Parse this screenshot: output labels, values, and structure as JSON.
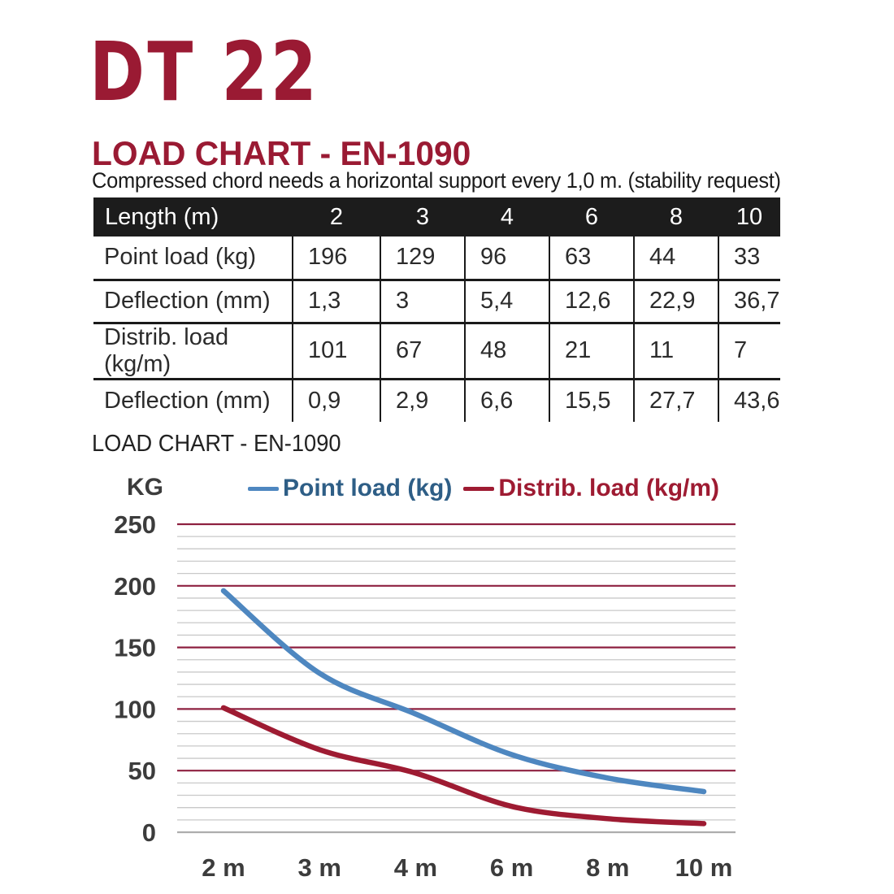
{
  "page": {
    "title": "DT 22",
    "accent_color": "#9A1A33"
  },
  "section": {
    "heading": "LOAD CHART - EN-1090",
    "subtitle": "Compressed chord needs a horizontal support every 1,0 m. (stability request)"
  },
  "table": {
    "header": {
      "label": "Length (m)",
      "columns": [
        "2",
        "3",
        "4",
        "6",
        "8",
        "10"
      ]
    },
    "rows": [
      {
        "label": "Point load (kg)",
        "values": [
          "196",
          "129",
          "96",
          "63",
          "44",
          "33"
        ]
      },
      {
        "label": "Deflection (mm)",
        "values": [
          "1,3",
          "3",
          "5,4",
          "12,6",
          "22,9",
          "36,7"
        ]
      },
      {
        "label": "Distrib. load (kg/m)",
        "values": [
          "101",
          "67",
          "48",
          "21",
          "11",
          "7"
        ]
      },
      {
        "label": "Deflection (mm)",
        "values": [
          "0,9",
          "2,9",
          "6,6",
          "15,5",
          "27,7",
          "43,6"
        ]
      }
    ]
  },
  "chart": {
    "heading": "LOAD CHART - EN-1090",
    "y_axis_label": "KG",
    "legend": [
      {
        "label": "Point load (kg)",
        "dash_color": "#4E87C0",
        "text_color": "#2E5E86"
      },
      {
        "label": "Distrib. load (kg/m)",
        "dash_color": "#9E1B32",
        "text_color": "#9E1B32"
      }
    ]
  },
  "chart_data": {
    "type": "line",
    "categories": [
      "2 m",
      "3 m",
      "4 m",
      "6 m",
      "8 m",
      "10 m"
    ],
    "series": [
      {
        "name": "Point load (kg)",
        "values": [
          196,
          129,
          96,
          63,
          44,
          33
        ],
        "color": "#4E87C0"
      },
      {
        "name": "Distrib. load (kg/m)",
        "values": [
          101,
          67,
          48,
          21,
          11,
          7
        ],
        "color": "#9E1B32"
      }
    ],
    "title": "LOAD CHART - EN-1090",
    "xlabel": "",
    "ylabel": "KG",
    "ylim": [
      0,
      250
    ],
    "y_major_step": 50,
    "y_minor_step": 10,
    "grid": true,
    "major_grid_color": "#8E2040",
    "minor_grid_color": "#C9C9C9",
    "zero_line_color": "#ADADAD",
    "legend_position": "top",
    "y_tick_labels": [
      "0",
      "50",
      "100",
      "150",
      "200",
      "250"
    ]
  }
}
